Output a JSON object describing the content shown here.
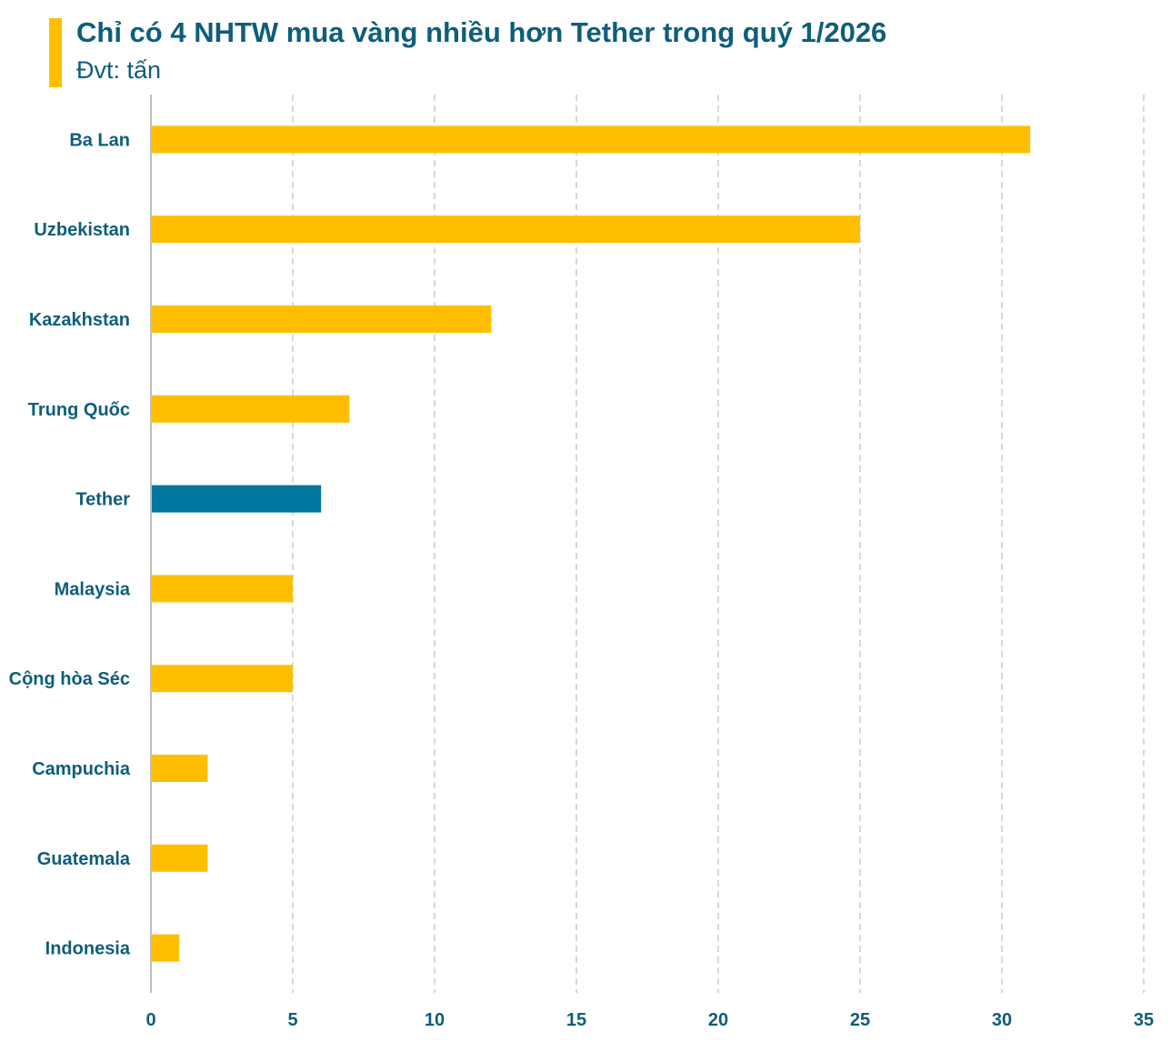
{
  "header": {
    "title": "Chỉ có 4 NHTW mua vàng nhiều hơn Tether trong quý 1/2026",
    "subtitle": "Đvt: tấn"
  },
  "colors": {
    "accent": "#FFBF00",
    "bar_default": "#FFBF00",
    "bar_highlight": "#00759E",
    "text": "#0E5E7A",
    "grid": "#BFBFBF",
    "axis": "#BFBFBF"
  },
  "chart_data": {
    "type": "bar",
    "orientation": "horizontal",
    "title": "Chỉ có 4 NHTW mua vàng nhiều hơn Tether trong quý 1/2026",
    "subtitle": "Đvt: tấn",
    "categories": [
      "Ba Lan",
      "Uzbekistan",
      "Kazakhstan",
      "Trung Quốc",
      "Tether",
      "Malaysia",
      "Cộng hòa Séc",
      "Campuchia",
      "Guatemala",
      "Indonesia"
    ],
    "values": [
      31,
      25,
      12,
      7,
      6,
      5,
      5,
      2,
      2,
      1
    ],
    "highlight_category": "Tether",
    "xlim": [
      0,
      35
    ],
    "xticks": [
      0,
      5,
      10,
      15,
      20,
      25,
      30,
      35
    ],
    "grid": "vertical-dashed",
    "legend": "none"
  }
}
